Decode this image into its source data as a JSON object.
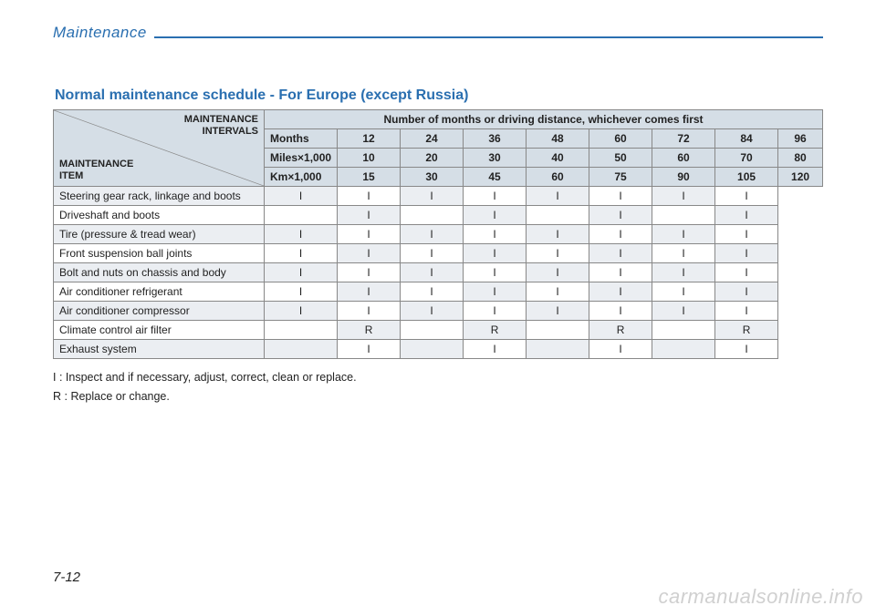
{
  "chapter": "Maintenance",
  "section_title": "Normal maintenance schedule - For Europe (except Russia)",
  "header": {
    "diag_upper": "MAINTENANCE\nINTERVALS",
    "diag_lower": "MAINTENANCE\nITEM",
    "span_title": "Number of months or driving distance, whichever comes first",
    "rows": [
      {
        "label": "Months",
        "values": [
          "12",
          "24",
          "36",
          "48",
          "60",
          "72",
          "84",
          "96"
        ]
      },
      {
        "label": "Miles×1,000",
        "values": [
          "10",
          "20",
          "30",
          "40",
          "50",
          "60",
          "70",
          "80"
        ]
      },
      {
        "label": "Km×1,000",
        "values": [
          "15",
          "30",
          "45",
          "60",
          "75",
          "90",
          "105",
          "120"
        ]
      }
    ]
  },
  "items": [
    {
      "name": "Steering gear rack, linkage and boots",
      "values": [
        "I",
        "I",
        "I",
        "I",
        "I",
        "I",
        "I",
        "I"
      ]
    },
    {
      "name": "Driveshaft and boots",
      "values": [
        "",
        "I",
        "",
        "I",
        "",
        "I",
        "",
        "I"
      ]
    },
    {
      "name": "Tire (pressure & tread wear)",
      "values": [
        "I",
        "I",
        "I",
        "I",
        "I",
        "I",
        "I",
        "I"
      ]
    },
    {
      "name": "Front suspension ball joints",
      "values": [
        "I",
        "I",
        "I",
        "I",
        "I",
        "I",
        "I",
        "I"
      ]
    },
    {
      "name": "Bolt and nuts on chassis and body",
      "values": [
        "I",
        "I",
        "I",
        "I",
        "I",
        "I",
        "I",
        "I"
      ]
    },
    {
      "name": "Air conditioner refrigerant",
      "values": [
        "I",
        "I",
        "I",
        "I",
        "I",
        "I",
        "I",
        "I"
      ]
    },
    {
      "name": "Air conditioner compressor",
      "values": [
        "I",
        "I",
        "I",
        "I",
        "I",
        "I",
        "I",
        "I"
      ]
    },
    {
      "name": "Climate control air filter",
      "values": [
        "",
        "R",
        "",
        "R",
        "",
        "R",
        "",
        "R"
      ]
    },
    {
      "name": "Exhaust system",
      "values": [
        "",
        "I",
        "",
        "I",
        "",
        "I",
        "",
        "I"
      ]
    }
  ],
  "legend": {
    "i": "I   : Inspect and if necessary, adjust, correct, clean or replace.",
    "r": "R : Replace or change."
  },
  "page_num": "7-12",
  "watermark": "carmanualsonline.info",
  "colors": {
    "accent": "#2a6fb0",
    "header_bg": "#d5dee6",
    "band_bg": "#ebeef2",
    "border": "#888888",
    "text": "#222222",
    "watermark": "#d0d0d0"
  }
}
